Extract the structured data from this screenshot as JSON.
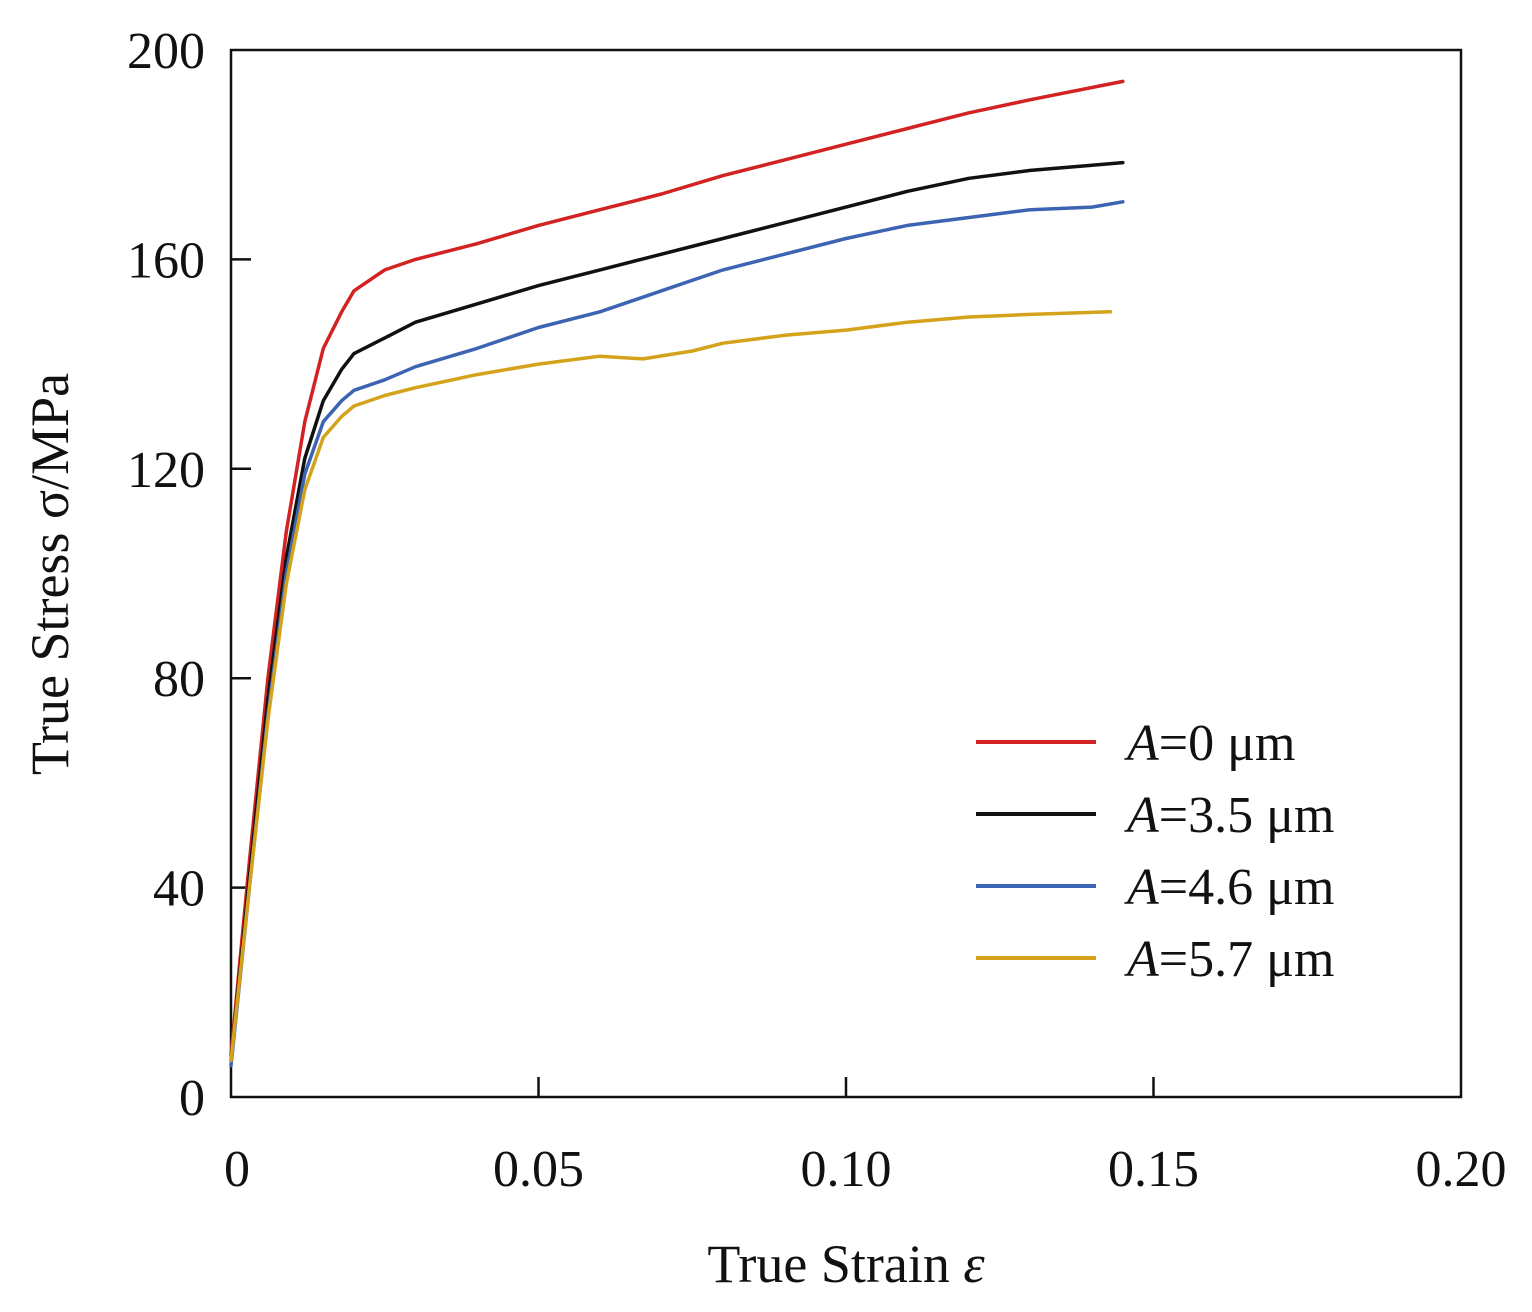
{
  "chart_data": {
    "type": "line",
    "title": "",
    "xlabel_prefix": "True Strain ",
    "xlabel_symbol": "ε",
    "ylabel": "True Stress σ/MPa",
    "xlim": [
      0,
      0.2
    ],
    "ylim": [
      0,
      200
    ],
    "xticks": [
      0,
      0.05,
      0.1,
      0.15,
      0.2
    ],
    "xtick_labels": [
      "0",
      "0.05",
      "0.10",
      "0.15",
      "0.20"
    ],
    "yticks": [
      0,
      40,
      80,
      120,
      160,
      200
    ],
    "ytick_labels": [
      "0",
      "40",
      "80",
      "120",
      "160",
      "200"
    ],
    "legend_position": "lower-right",
    "series": [
      {
        "name": "A=0 μm",
        "legend_var": "A",
        "legend_rest": "=0 μm",
        "color": "#d32222",
        "points": [
          [
            0,
            8
          ],
          [
            0.003,
            45
          ],
          [
            0.006,
            80
          ],
          [
            0.009,
            108
          ],
          [
            0.012,
            129
          ],
          [
            0.015,
            143
          ],
          [
            0.018,
            150
          ],
          [
            0.02,
            154
          ],
          [
            0.025,
            158
          ],
          [
            0.03,
            160
          ],
          [
            0.04,
            163
          ],
          [
            0.05,
            166.5
          ],
          [
            0.06,
            169.5
          ],
          [
            0.07,
            172.5
          ],
          [
            0.08,
            176
          ],
          [
            0.09,
            179
          ],
          [
            0.1,
            182
          ],
          [
            0.11,
            185
          ],
          [
            0.12,
            188
          ],
          [
            0.13,
            190.5
          ],
          [
            0.145,
            194
          ]
        ]
      },
      {
        "name": "A=3.5 μm",
        "legend_var": "A",
        "legend_rest": "=3.5 μm",
        "color": "#111111",
        "points": [
          [
            0,
            7
          ],
          [
            0.003,
            42
          ],
          [
            0.006,
            76
          ],
          [
            0.009,
            103
          ],
          [
            0.012,
            122
          ],
          [
            0.015,
            133
          ],
          [
            0.018,
            139
          ],
          [
            0.02,
            142
          ],
          [
            0.025,
            145
          ],
          [
            0.03,
            148
          ],
          [
            0.04,
            151.5
          ],
          [
            0.05,
            155
          ],
          [
            0.06,
            158
          ],
          [
            0.07,
            161
          ],
          [
            0.08,
            164
          ],
          [
            0.09,
            167
          ],
          [
            0.1,
            170
          ],
          [
            0.11,
            173
          ],
          [
            0.12,
            175.5
          ],
          [
            0.13,
            177
          ],
          [
            0.14,
            178
          ],
          [
            0.145,
            178.5
          ]
        ]
      },
      {
        "name": "A=4.6 μm",
        "legend_var": "A",
        "legend_rest": "=4.6 μm",
        "color": "#3d64b2",
        "points": [
          [
            0,
            6
          ],
          [
            0.003,
            40
          ],
          [
            0.006,
            73
          ],
          [
            0.009,
            100
          ],
          [
            0.012,
            119
          ],
          [
            0.015,
            129
          ],
          [
            0.018,
            133
          ],
          [
            0.02,
            135
          ],
          [
            0.025,
            137
          ],
          [
            0.03,
            139.5
          ],
          [
            0.04,
            143
          ],
          [
            0.05,
            147
          ],
          [
            0.06,
            150
          ],
          [
            0.07,
            154
          ],
          [
            0.08,
            158
          ],
          [
            0.09,
            161
          ],
          [
            0.1,
            164
          ],
          [
            0.11,
            166.5
          ],
          [
            0.12,
            168
          ],
          [
            0.13,
            169.5
          ],
          [
            0.14,
            170
          ],
          [
            0.145,
            171
          ]
        ]
      },
      {
        "name": "A=5.7 μm",
        "legend_var": "A",
        "legend_rest": "=5.7 μm",
        "color": "#d4a21b",
        "points": [
          [
            0,
            7
          ],
          [
            0.003,
            40
          ],
          [
            0.006,
            72
          ],
          [
            0.009,
            98
          ],
          [
            0.012,
            116
          ],
          [
            0.015,
            126
          ],
          [
            0.018,
            130
          ],
          [
            0.02,
            132
          ],
          [
            0.025,
            134
          ],
          [
            0.03,
            135.5
          ],
          [
            0.04,
            138
          ],
          [
            0.05,
            140
          ],
          [
            0.06,
            141.5
          ],
          [
            0.067,
            141
          ],
          [
            0.075,
            142.5
          ],
          [
            0.08,
            144
          ],
          [
            0.09,
            145.5
          ],
          [
            0.1,
            146.5
          ],
          [
            0.11,
            148
          ],
          [
            0.12,
            149
          ],
          [
            0.13,
            149.5
          ],
          [
            0.143,
            150
          ]
        ]
      }
    ]
  }
}
